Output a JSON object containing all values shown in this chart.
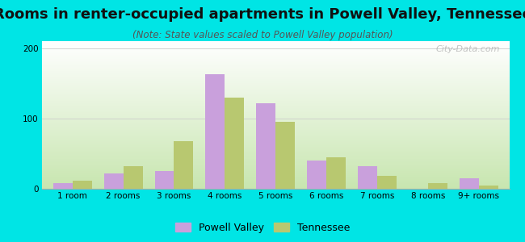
{
  "title": "Rooms in renter-occupied apartments in Powell Valley, Tennessee",
  "subtitle": "(Note: State values scaled to Powell Valley population)",
  "categories": [
    "1 room",
    "2 rooms",
    "3 rooms",
    "4 rooms",
    "5 rooms",
    "6 rooms",
    "7 rooms",
    "8 rooms",
    "9+ rooms"
  ],
  "powell_valley": [
    8,
    22,
    25,
    163,
    122,
    40,
    32,
    0,
    15
  ],
  "tennessee": [
    12,
    32,
    68,
    130,
    95,
    45,
    18,
    8,
    5
  ],
  "powell_color": "#c9a0dc",
  "tennessee_color": "#b8c870",
  "background_color": "#00e5e5",
  "ylim": [
    0,
    210
  ],
  "yticks": [
    0,
    100,
    200
  ],
  "bar_width": 0.38,
  "title_fontsize": 13,
  "subtitle_fontsize": 8.5,
  "tick_fontsize": 7.5,
  "legend_fontsize": 9,
  "watermark": "City-Data.com"
}
